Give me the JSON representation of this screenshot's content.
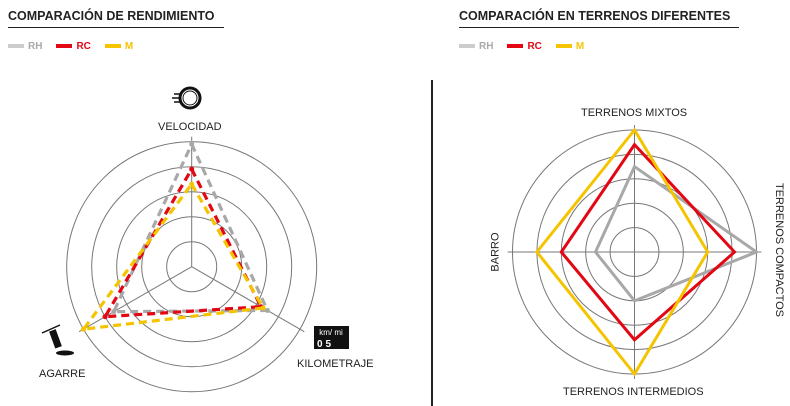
{
  "left": {
    "title": "COMPARACIÓN DE RENDIMIENTO"
  },
  "right": {
    "title": "COMPARACIÓN EN TERRENOS DIFERENTES"
  },
  "legend": [
    {
      "name": "RH",
      "color": "#aaaaaa"
    },
    {
      "name": "RC",
      "color": "#e30613"
    },
    {
      "name": "M",
      "color": "#f5c400"
    }
  ],
  "icons": {
    "odometer_top": "km/ mi",
    "odometer_digits": "05"
  },
  "chart_data": [
    {
      "type": "radar",
      "title": "COMPARACIÓN DE RENDIMIENTO",
      "axes": [
        "VELOCIDAD",
        "KILOMETRAJE",
        "AGARRE"
      ],
      "range": [
        0,
        5
      ],
      "rings": 5,
      "line_style": "dashed",
      "series": [
        {
          "name": "RH",
          "values": [
            4.9,
            3.5,
            3.6
          ]
        },
        {
          "name": "RC",
          "values": [
            3.9,
            3.2,
            4.0
          ]
        },
        {
          "name": "M",
          "values": [
            3.3,
            3.3,
            5.0
          ]
        }
      ]
    },
    {
      "type": "radar",
      "title": "COMPARACIÓN EN TERRENOS DIFERENTES",
      "axes": [
        "TERRENOS MIXTOS",
        "TERRENOS COMPACTOS",
        "TERRENOS INTERMEDIOS",
        "BARRO"
      ],
      "range": [
        0,
        5
      ],
      "rings": 5,
      "line_style": "solid",
      "series": [
        {
          "name": "RH",
          "values": [
            3.5,
            5.0,
            2.0,
            1.6
          ]
        },
        {
          "name": "RC",
          "values": [
            4.4,
            4.1,
            3.6,
            3.0
          ]
        },
        {
          "name": "M",
          "values": [
            5.0,
            3.0,
            5.0,
            4.0
          ]
        }
      ]
    }
  ]
}
